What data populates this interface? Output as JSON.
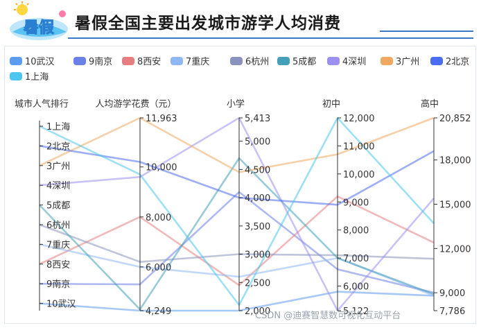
{
  "header": {
    "title": "暑假全国主要出发城市游学人均消费",
    "logo_text": "暑假"
  },
  "watermark": "CSDN @迪赛智慧数可视化互动平台",
  "chart_data": {
    "type": "parallel-coordinates",
    "title": "暑假全国主要出发城市游学人均消费",
    "legend_position": "top-left",
    "legend": [
      "10武汉",
      "9南京",
      "8西安",
      "7重庆",
      "6杭州",
      "5成都",
      "4深圳",
      "3广州",
      "2北京",
      "1上海"
    ],
    "axes": [
      {
        "name": "城市人气排行",
        "type": "category",
        "categories": [
          "1上海",
          "2北京",
          "3广州",
          "4深圳",
          "5成都",
          "6杭州",
          "7重庆",
          "8西安",
          "9南京",
          "10武汉"
        ]
      },
      {
        "name": "人均游学花费（元）",
        "type": "value",
        "min": 4249,
        "max": 11963,
        "ticks": [
          4249,
          6000,
          8000,
          10000,
          11963
        ],
        "tick_labels": [
          "4,249",
          "6,000",
          "8,000",
          "10,000",
          "11,963"
        ]
      },
      {
        "name": "小学",
        "type": "value",
        "min": 2000,
        "max": 5413,
        "ticks": [
          2000,
          2500,
          3000,
          3500,
          4000,
          4500,
          5000,
          5413
        ],
        "tick_labels": [
          "2,000",
          "2,500",
          "3,000",
          "3,500",
          "4,000",
          "4,500",
          "5,000",
          "5,413"
        ]
      },
      {
        "name": "初中",
        "type": "value",
        "min": 5122,
        "max": 12000,
        "ticks": [
          5122,
          6000,
          7000,
          8000,
          9000,
          10000,
          11000,
          12000
        ],
        "tick_labels": [
          "5,122",
          "6,000",
          "7,000",
          "8,000",
          "9,000",
          "10,000",
          "11,000",
          "12,000"
        ]
      },
      {
        "name": "高中",
        "type": "value",
        "min": 7786,
        "max": 20852,
        "ticks": [
          7786,
          9000,
          12000,
          15000,
          18000,
          20852
        ],
        "tick_labels": [
          "7,786",
          "9,000",
          "12,000",
          "15,000",
          "18,000",
          "20,852"
        ]
      }
    ],
    "series": [
      {
        "name": "10武汉",
        "color": "#5b9bf0",
        "values": [
          "10武汉",
          4249,
          2000,
          5800,
          8800
        ]
      },
      {
        "name": "9南京",
        "color": "#6b7fe8",
        "values": [
          "9南京",
          5300,
          4100,
          6600,
          9000
        ]
      },
      {
        "name": "8西安",
        "color": "#e57f7f",
        "values": [
          "8西安",
          8000,
          2450,
          9200,
          12400
        ]
      },
      {
        "name": "7重庆",
        "color": "#8fb8f2",
        "values": [
          "7重庆",
          6000,
          2600,
          7000,
          8800
        ]
      },
      {
        "name": "6杭州",
        "color": "#8a93bd",
        "values": [
          "6杭州",
          6200,
          3000,
          7100,
          11300
        ]
      },
      {
        "name": "5成都",
        "color": "#44a0b8",
        "values": [
          "5成都",
          4300,
          4700,
          7000,
          8900
        ]
      },
      {
        "name": "4深圳",
        "color": "#9b8ff0",
        "values": [
          "4深圳",
          9600,
          5413,
          5122,
          15400
        ]
      },
      {
        "name": "3广州",
        "color": "#f0a860",
        "values": [
          "3广州",
          11963,
          4450,
          10700,
          20852
        ]
      },
      {
        "name": "2北京",
        "color": "#4a6cf0",
        "values": [
          "2北京",
          10200,
          4000,
          8900,
          18600
        ]
      },
      {
        "name": "1上海",
        "color": "#4cc6ee",
        "values": [
          "1上海",
          9700,
          2100,
          12000,
          13700
        ]
      }
    ]
  }
}
